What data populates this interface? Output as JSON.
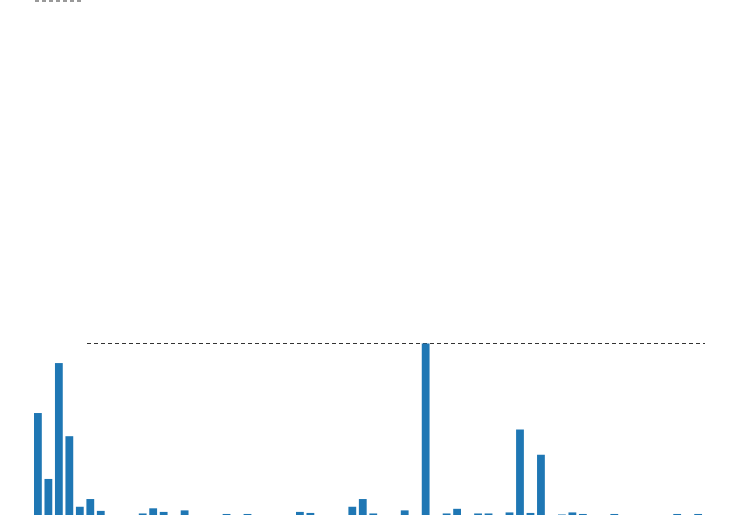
{
  "chart_data": {
    "type": "bar",
    "color": "#1f77b4",
    "reference_line_color": "#333333",
    "grid": false,
    "axes_visible": false,
    "ylim": [
      0,
      100
    ],
    "reference_line": 33.3,
    "values": [
      19.8,
      7.0,
      29.5,
      15.3,
      1.6,
      3.1,
      0.8,
      0,
      0,
      0,
      0.3,
      1.3,
      0.6,
      0,
      0.9,
      0,
      0,
      0,
      0.2,
      0,
      0.2,
      0,
      0,
      0,
      0,
      0.6,
      0.4,
      0,
      0,
      0,
      1.6,
      3.1,
      0.3,
      0,
      0,
      0.9,
      0,
      33.3,
      0,
      0.3,
      1.2,
      0,
      0.3,
      0.3,
      0,
      0.5,
      16.6,
      0.4,
      11.7,
      0,
      0.1,
      0.5,
      0.2,
      0,
      0,
      0.2,
      0,
      0,
      0,
      0,
      0,
      0.2,
      0,
      0.2
    ]
  }
}
